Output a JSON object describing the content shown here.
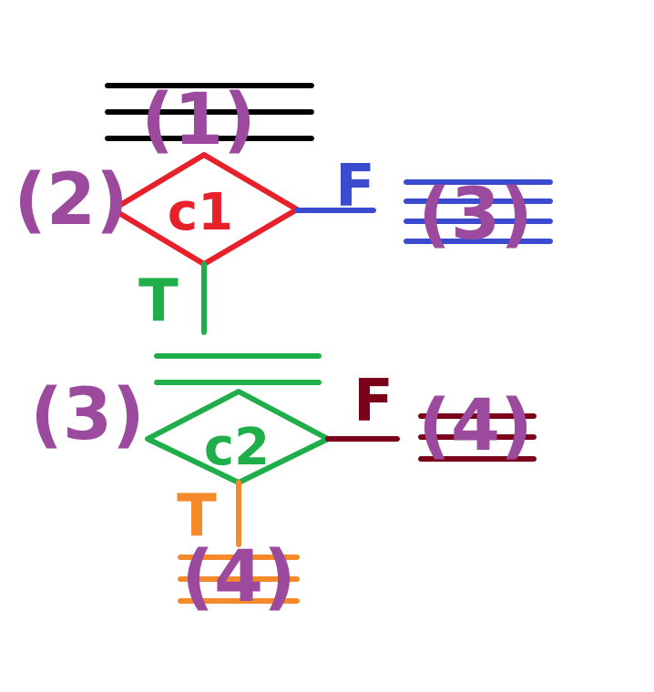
{
  "colors": {
    "black": "#000000",
    "red": "#e8202a",
    "blue": "#3a4bd0",
    "green": "#1fae4a",
    "maroon": "#7b0019",
    "orange": "#f58a2a",
    "purple": "#9b4a9e"
  },
  "statements": {
    "s1": "(1)",
    "s2": "(2)",
    "s3_right": "(3)",
    "s3_left": "(3)",
    "s4_right": "(4)",
    "s4_bottom": "(4)"
  },
  "conditions": {
    "c1": "c1",
    "c2": "c2"
  },
  "branches": {
    "c1_false": "F",
    "c1_true": "T",
    "c2_false": "F",
    "c2_true": "T"
  }
}
